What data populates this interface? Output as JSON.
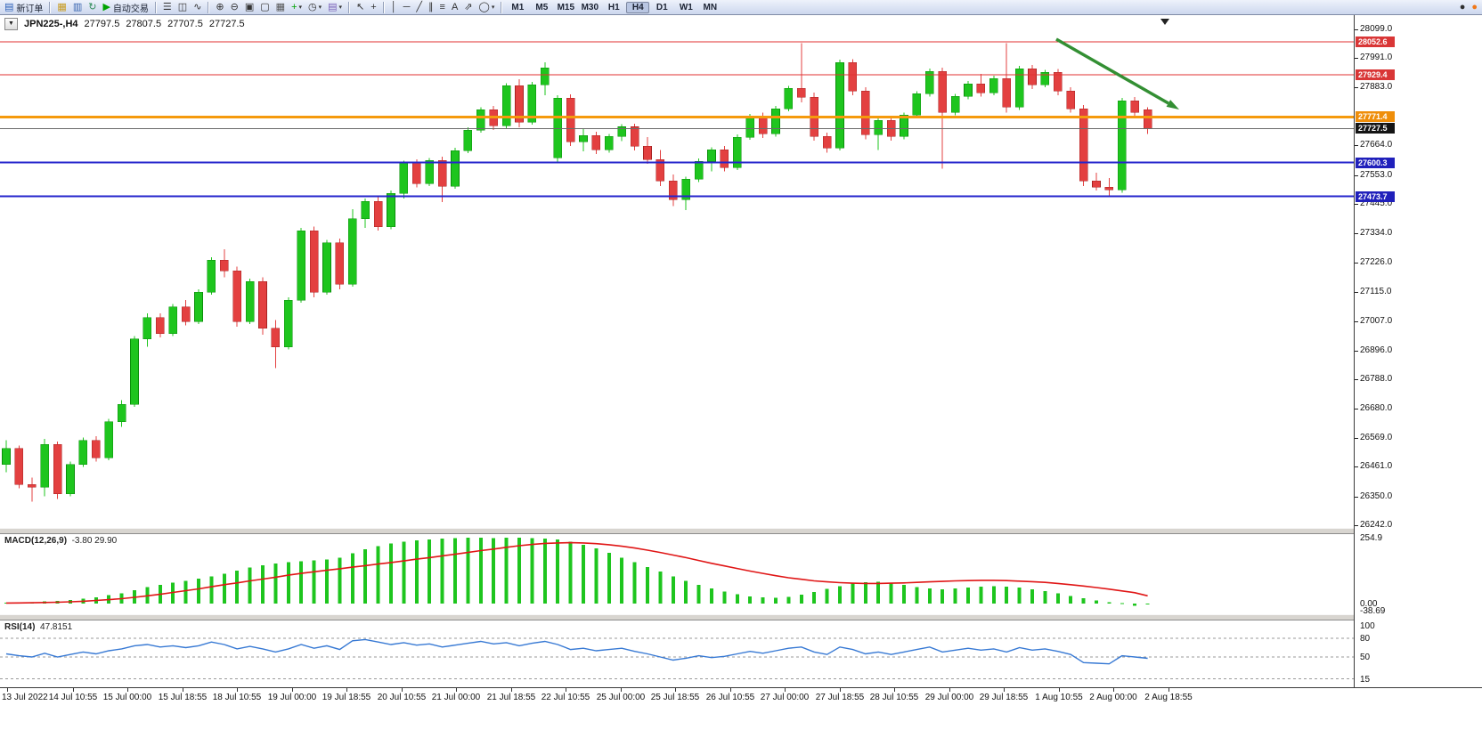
{
  "icons": {
    "one_click": "▼",
    "caret_glyph": "▾"
  },
  "toolbar": {
    "buttons": [
      {
        "name": "new-order-button",
        "glyph": "▤",
        "glyph_color": "#2b5fb8",
        "label": "新订单"
      },
      {
        "name": "sep"
      },
      {
        "name": "market-watch-button",
        "glyph": "▦",
        "glyph_color": "#c89b1e"
      },
      {
        "name": "data-window-button",
        "glyph": "▥",
        "glyph_color": "#3a66b0"
      },
      {
        "name": "refresh-button",
        "glyph": "↻",
        "glyph_color": "#2e8b57"
      },
      {
        "name": "auto-trading-button",
        "glyph": "▶",
        "glyph_color": "#00a300",
        "label": "自动交易"
      },
      {
        "name": "sep"
      },
      {
        "name": "bar-chart-button",
        "glyph": "☰",
        "glyph_color": "#333333"
      },
      {
        "name": "candlestick-button",
        "glyph": "◫",
        "glyph_color": "#333333"
      },
      {
        "name": "line-chart-button",
        "glyph": "∿",
        "glyph_color": "#333333"
      },
      {
        "name": "sep"
      },
      {
        "name": "zoom-in-button",
        "glyph": "⊕",
        "glyph_color": "#333333"
      },
      {
        "name": "zoom-out-button",
        "glyph": "⊖",
        "glyph_color": "#333333"
      },
      {
        "name": "tile-windows-button",
        "glyph": "▣",
        "glyph_color": "#333333"
      },
      {
        "name": "cascade-windows-button",
        "glyph": "▢",
        "glyph_color": "#333333"
      },
      {
        "name": "grid-button",
        "glyph": "▦",
        "glyph_color": "#555555"
      },
      {
        "name": "indicators-button",
        "glyph": "+",
        "glyph_color": "#00a300",
        "caret": true
      },
      {
        "name": "periods-button",
        "glyph": "◷",
        "glyph_color": "#333333",
        "caret": true
      },
      {
        "name": "templates-button",
        "glyph": "▤",
        "glyph_color": "#7a5fb8",
        "caret": true
      },
      {
        "name": "sep"
      },
      {
        "name": "cursor-button",
        "glyph": "↖",
        "glyph_color": "#333333"
      },
      {
        "name": "crosshair-button",
        "glyph": "+",
        "glyph_color": "#333333"
      },
      {
        "name": "sep"
      },
      {
        "name": "vertical-line-button",
        "glyph": "│",
        "glyph_color": "#333333"
      },
      {
        "name": "horizontal-line-button",
        "glyph": "─",
        "glyph_color": "#333333"
      },
      {
        "name": "trendline-button",
        "glyph": "╱",
        "glyph_color": "#333333"
      },
      {
        "name": "channel-button",
        "glyph": "∥",
        "glyph_color": "#333333"
      },
      {
        "name": "fibonacci-button",
        "glyph": "≡",
        "glyph_color": "#333333"
      },
      {
        "name": "text-button",
        "glyph": "A",
        "glyph_color": "#333333"
      },
      {
        "name": "arrows-button",
        "glyph": "⇗",
        "glyph_color": "#333333"
      },
      {
        "name": "shapes-button",
        "glyph": "◯",
        "glyph_color": "#333333",
        "caret": true
      },
      {
        "name": "sep"
      }
    ],
    "timeframes": [
      "M1",
      "M5",
      "M15",
      "M30",
      "H1",
      "H4",
      "D1",
      "W1",
      "MN"
    ],
    "active_timeframe": "H4",
    "right_buttons": [
      {
        "name": "alerts-button",
        "glyph": "●",
        "glyph_color": "#303030"
      },
      {
        "name": "community-button",
        "glyph": "●",
        "glyph_color": "#f07818"
      }
    ]
  },
  "chart_header": {
    "symbol_period": "JPN225-,H4",
    "open": "27797.5",
    "high": "27807.5",
    "low": "27707.5",
    "close": "27727.5"
  },
  "price_axis": {
    "labels": [
      "28099.0",
      "27991.0",
      "27883.0",
      "27664.0",
      "27553.0",
      "27445.0",
      "27334.0",
      "27226.0",
      "27115.0",
      "27007.0",
      "26896.0",
      "26788.0",
      "26680.0",
      "26569.0",
      "26461.0",
      "26350.0",
      "26242.0"
    ]
  },
  "time_axis": {
    "labels": [
      "13 Jul 2022",
      "14 Jul 10:55",
      "15 Jul 00:00",
      "15 Jul 18:55",
      "18 Jul 10:55",
      "19 Jul 00:00",
      "19 Jul 18:55",
      "20 Jul 10:55",
      "21 Jul 00:00",
      "21 Jul 18:55",
      "22 Jul 10:55",
      "25 Jul 00:00",
      "25 Jul 18:55",
      "26 Jul 10:55",
      "27 Jul 00:00",
      "27 Jul 18:55",
      "28 Jul 10:55",
      "29 Jul 00:00",
      "29 Jul 18:55",
      "1 Aug 10:55",
      "2 Aug 00:00",
      "2 Aug 18:55"
    ]
  },
  "levels": [
    {
      "name": "resistance-1",
      "label": "28052.6",
      "price": 28052.6,
      "color": "#e03232",
      "box_color": "#d93636",
      "width": 1
    },
    {
      "name": "resistance-2",
      "label": "27929.4",
      "price": 27929.4,
      "color": "#e03232",
      "box_color": "#d93636",
      "width": 1
    },
    {
      "name": "pivot-line",
      "label": "27771.4",
      "price": 27771.4,
      "color": "#f59a0d",
      "box_color": "#ef8e0a",
      "width": 3
    },
    {
      "name": "bid-price-line",
      "label": "27727.5",
      "price": 27727.5,
      "color": "#6a6a6a",
      "box_color": "#141414",
      "width": 1
    },
    {
      "name": "support-1",
      "label": "27600.3",
      "price": 27600.3,
      "color": "#2525cc",
      "box_color": "#2020bb",
      "width": 2
    },
    {
      "name": "support-2",
      "label": "27473.7",
      "price": 27473.7,
      "color": "#2525cc",
      "box_color": "#2020bb",
      "width": 2
    }
  ],
  "annotations": {
    "trend_arrow": {
      "name": "bearish-trend-arrow",
      "color": "#338f33",
      "width": 3.5,
      "from": [
        1186,
        44
      ],
      "to": [
        1324,
        123
      ]
    }
  },
  "chart_data": {
    "type": "candlestick",
    "symbol": "JPN225-",
    "period": "H4",
    "y_max": 28099.0,
    "y_min": 26242.0,
    "candles": [
      [
        26470,
        26560,
        26440,
        26530
      ],
      [
        26530,
        26540,
        26380,
        26395
      ],
      [
        26395,
        26420,
        26330,
        26385
      ],
      [
        26385,
        26565,
        26350,
        26545
      ],
      [
        26545,
        26555,
        26340,
        26360
      ],
      [
        26360,
        26480,
        26350,
        26470
      ],
      [
        26470,
        26570,
        26460,
        26560
      ],
      [
        26560,
        26575,
        26480,
        26495
      ],
      [
        26495,
        26640,
        26485,
        26630
      ],
      [
        26630,
        26710,
        26610,
        26695
      ],
      [
        26695,
        26950,
        26685,
        26940
      ],
      [
        26940,
        27035,
        26910,
        27020
      ],
      [
        27020,
        27035,
        26945,
        26960
      ],
      [
        26960,
        27070,
        26950,
        27060
      ],
      [
        27060,
        27085,
        26990,
        27005
      ],
      [
        27005,
        27125,
        26995,
        27115
      ],
      [
        27115,
        27245,
        27105,
        27235
      ],
      [
        27235,
        27275,
        27170,
        27195
      ],
      [
        27195,
        27210,
        26985,
        27005
      ],
      [
        27005,
        27165,
        26995,
        27155
      ],
      [
        27155,
        27170,
        26955,
        26980
      ],
      [
        26980,
        27010,
        26830,
        26910
      ],
      [
        26910,
        27095,
        26900,
        27085
      ],
      [
        27085,
        27355,
        27075,
        27345
      ],
      [
        27345,
        27360,
        27095,
        27115
      ],
      [
        27115,
        27310,
        27105,
        27300
      ],
      [
        27300,
        27315,
        27125,
        27145
      ],
      [
        27145,
        27425,
        27135,
        27390
      ],
      [
        27390,
        27465,
        27355,
        27455
      ],
      [
        27455,
        27470,
        27345,
        27360
      ],
      [
        27360,
        27495,
        27350,
        27485
      ],
      [
        27485,
        27608,
        27465,
        27598
      ],
      [
        27598,
        27612,
        27508,
        27522
      ],
      [
        27522,
        27618,
        27512,
        27608
      ],
      [
        27608,
        27622,
        27452,
        27512
      ],
      [
        27512,
        27655,
        27502,
        27645
      ],
      [
        27645,
        27732,
        27635,
        27722
      ],
      [
        27722,
        27808,
        27712,
        27798
      ],
      [
        27798,
        27812,
        27722,
        27738
      ],
      [
        27738,
        27898,
        27728,
        27888
      ],
      [
        27888,
        27912,
        27732,
        27752
      ],
      [
        27752,
        27902,
        27742,
        27892
      ],
      [
        27892,
        27975,
        27852,
        27955
      ],
      [
        27618,
        27852,
        27602,
        27842
      ],
      [
        27842,
        27856,
        27662,
        27678
      ],
      [
        27678,
        27728,
        27642,
        27702
      ],
      [
        27702,
        27715,
        27632,
        27648
      ],
      [
        27648,
        27708,
        27638,
        27698
      ],
      [
        27698,
        27744,
        27680,
        27734
      ],
      [
        27734,
        27746,
        27645,
        27662
      ],
      [
        27662,
        27695,
        27595,
        27612
      ],
      [
        27612,
        27648,
        27512,
        27532
      ],
      [
        27532,
        27555,
        27438,
        27462
      ],
      [
        27462,
        27548,
        27422,
        27538
      ],
      [
        27538,
        27615,
        27528,
        27605
      ],
      [
        27605,
        27658,
        27568,
        27648
      ],
      [
        27648,
        27662,
        27568,
        27582
      ],
      [
        27582,
        27705,
        27572,
        27695
      ],
      [
        27695,
        27782,
        27685,
        27772
      ],
      [
        27772,
        27788,
        27692,
        27708
      ],
      [
        27708,
        27812,
        27698,
        27802
      ],
      [
        27802,
        27888,
        27792,
        27878
      ],
      [
        27878,
        28048,
        27825,
        27845
      ],
      [
        27845,
        27862,
        27682,
        27698
      ],
      [
        27698,
        27712,
        27638,
        27655
      ],
      [
        27655,
        27985,
        27645,
        27975
      ],
      [
        27975,
        27988,
        27852,
        27868
      ],
      [
        27868,
        27882,
        27688,
        27705
      ],
      [
        27705,
        27768,
        27648,
        27758
      ],
      [
        27758,
        27772,
        27682,
        27698
      ],
      [
        27698,
        27788,
        27688,
        27778
      ],
      [
        27778,
        27868,
        27768,
        27858
      ],
      [
        27858,
        27952,
        27848,
        27942
      ],
      [
        27942,
        27955,
        27578,
        27788
      ],
      [
        27788,
        27858,
        27778,
        27848
      ],
      [
        27848,
        27905,
        27838,
        27895
      ],
      [
        27895,
        27932,
        27848,
        27862
      ],
      [
        27862,
        27925,
        27852,
        27915
      ],
      [
        27915,
        28048,
        27788,
        27808
      ],
      [
        27808,
        27962,
        27798,
        27952
      ],
      [
        27952,
        27965,
        27875,
        27892
      ],
      [
        27892,
        27948,
        27882,
        27938
      ],
      [
        27938,
        27950,
        27852,
        27868
      ],
      [
        27868,
        27882,
        27788,
        27802
      ],
      [
        27802,
        27815,
        27512,
        27532
      ],
      [
        27532,
        27562,
        27495,
        27508
      ],
      [
        27508,
        27542,
        27478,
        27498
      ],
      [
        27498,
        27842,
        27488,
        27832
      ],
      [
        27832,
        27845,
        27768,
        27788
      ],
      [
        27797.5,
        27807.5,
        27707.5,
        27727.5
      ]
    ],
    "bull_color": "#1ec51e",
    "bear_color": "#e34040",
    "macd": {
      "label": "MACD(12,26,9)",
      "values_label": "-3.80 29.90",
      "scale": {
        "max_label": "254.9",
        "zero_label": "0.00",
        "min_label": "-38.69",
        "max": 254.9,
        "zero": 0,
        "min": -38.69
      },
      "histogram_color": "#1ec51e",
      "signal_color": "#e01616",
      "histogram": [
        3,
        4,
        6,
        8,
        10,
        14,
        19,
        25,
        32,
        40,
        52,
        63,
        73,
        81,
        88,
        96,
        106,
        116,
        127,
        139,
        149,
        156,
        161,
        164,
        167,
        171,
        177,
        195,
        210,
        222,
        232,
        240,
        245,
        249,
        252,
        254,
        255,
        255,
        254,
        255,
        255,
        254,
        252,
        248,
        240,
        228,
        213,
        196,
        178,
        160,
        142,
        124,
        106,
        88,
        72,
        58,
        46,
        36,
        28,
        24,
        22,
        26,
        34,
        45,
        57,
        68,
        77,
        82,
        84,
        80,
        72,
        64,
        58,
        56,
        58,
        62,
        66,
        68,
        66,
        62,
        56,
        48,
        40,
        30,
        20,
        12,
        6,
        2,
        -8,
        -3.8
      ],
      "signal": [
        2,
        2.5,
        3,
        4,
        5,
        7,
        9,
        12,
        15,
        19,
        24,
        30,
        36,
        43,
        50,
        57,
        65,
        73,
        80,
        88,
        95,
        102,
        110,
        117,
        123,
        129,
        135,
        141,
        147,
        153,
        159,
        165,
        172,
        178,
        185,
        191,
        198,
        205,
        211,
        218,
        224,
        229,
        233,
        235,
        236,
        235,
        232,
        228,
        222,
        215,
        207,
        198,
        188,
        178,
        167,
        156,
        146,
        136,
        126,
        117,
        108,
        100,
        94,
        88,
        84,
        81,
        79,
        78,
        78,
        79,
        80,
        82,
        84,
        86,
        88,
        89,
        90,
        90,
        89,
        87,
        85,
        82,
        78,
        73,
        68,
        62,
        56,
        49,
        42,
        29.9
      ]
    },
    "rsi": {
      "label": "RSI(14)",
      "value_label": "47.8151",
      "line_color": "#3779d4",
      "levels": [
        80,
        50,
        15
      ],
      "scale_labels": [
        {
          "text": "100",
          "value": 100
        },
        {
          "text": "80",
          "value": 80
        },
        {
          "text": "50",
          "value": 50
        },
        {
          "text": "15",
          "value": 15
        }
      ],
      "values": [
        55,
        52,
        50,
        56,
        50,
        54,
        58,
        55,
        60,
        63,
        68,
        70,
        66,
        68,
        65,
        68,
        74,
        70,
        63,
        67,
        63,
        58,
        63,
        70,
        64,
        68,
        62,
        76,
        78,
        74,
        70,
        73,
        69,
        71,
        66,
        69,
        72,
        75,
        71,
        73,
        68,
        72,
        75,
        70,
        62,
        64,
        60,
        62,
        64,
        59,
        55,
        50,
        45,
        48,
        52,
        49,
        51,
        55,
        59,
        56,
        60,
        64,
        66,
        58,
        54,
        66,
        62,
        55,
        58,
        54,
        58,
        62,
        66,
        58,
        61,
        64,
        61,
        63,
        58,
        65,
        61,
        63,
        59,
        54,
        41,
        40,
        39,
        52,
        50,
        47.8
      ]
    }
  }
}
